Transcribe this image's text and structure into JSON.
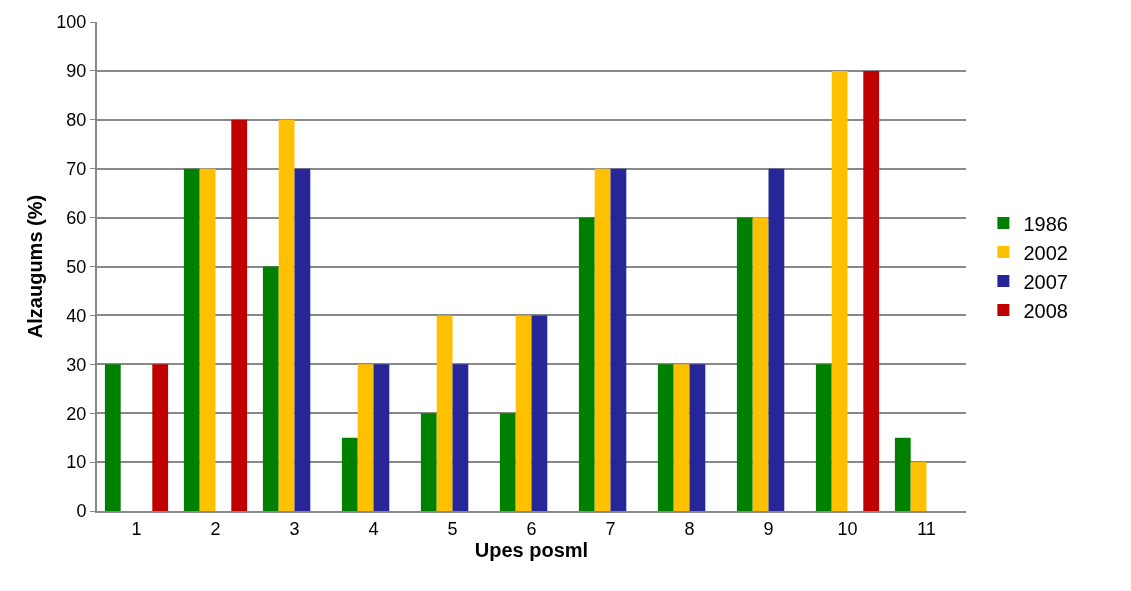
{
  "chart_data": {
    "type": "bar",
    "xlabel": "Upes posml",
    "ylabel": "Alzaugums (%)",
    "categories": [
      "1",
      "2",
      "3",
      "4",
      "5",
      "6",
      "7",
      "8",
      "9",
      "10",
      "11"
    ],
    "series": [
      {
        "name": "1986",
        "color": "#008000",
        "values": [
          30,
          70,
          50,
          15,
          20,
          20,
          60,
          30,
          60,
          30,
          15
        ]
      },
      {
        "name": "2002",
        "color": "#ffc000",
        "values": [
          null,
          70,
          80,
          30,
          40,
          40,
          70,
          30,
          60,
          90,
          10
        ]
      },
      {
        "name": "2007",
        "color": "#262699",
        "values": [
          null,
          null,
          70,
          30,
          30,
          40,
          70,
          30,
          70,
          null,
          null
        ]
      },
      {
        "name": "2008",
        "color": "#c00000",
        "values": [
          30,
          80,
          null,
          null,
          null,
          null,
          null,
          null,
          null,
          90,
          null
        ]
      }
    ],
    "ylim": [
      0,
      100
    ],
    "yticks": [
      0,
      10,
      20,
      30,
      40,
      50,
      60,
      70,
      80,
      90,
      100
    ],
    "grid": "y",
    "legend": "right"
  }
}
